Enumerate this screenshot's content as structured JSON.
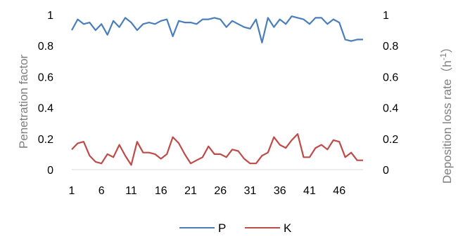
{
  "chart_data": {
    "type": "line",
    "title": "",
    "xlabel": "",
    "ylabel_left": "Penetration factor",
    "ylabel_right_main": "Deposition loss rate（h",
    "ylabel_right_sup": "-1",
    "ylabel_right_close": "）",
    "x_ticks": [
      "1",
      "6",
      "11",
      "16",
      "21",
      "26",
      "31",
      "36",
      "41",
      "46"
    ],
    "y_ticks_left": [
      "0",
      "0.2",
      "0.4",
      "0.6",
      "0.8",
      "1"
    ],
    "y_ticks_right": [
      "0",
      "0.2",
      "0.4",
      "0.6",
      "0.8",
      "1"
    ],
    "ylim": [
      0,
      1
    ],
    "xlim": [
      1,
      50
    ],
    "grid": false,
    "legend_position": "bottom",
    "x": [
      1,
      2,
      3,
      4,
      5,
      6,
      7,
      8,
      9,
      10,
      11,
      12,
      13,
      14,
      15,
      16,
      17,
      18,
      19,
      20,
      21,
      22,
      23,
      24,
      25,
      26,
      27,
      28,
      29,
      30,
      31,
      32,
      33,
      34,
      35,
      36,
      37,
      38,
      39,
      40,
      41,
      42,
      43,
      44,
      45,
      46,
      47,
      48,
      49,
      50
    ],
    "series": [
      {
        "name": "P",
        "axis": "left",
        "color": "#4a7ebb",
        "values": [
          0.9,
          0.97,
          0.94,
          0.95,
          0.9,
          0.94,
          0.87,
          0.96,
          0.92,
          0.98,
          0.95,
          0.9,
          0.94,
          0.95,
          0.94,
          0.96,
          0.97,
          0.86,
          0.96,
          0.95,
          0.95,
          0.94,
          0.97,
          0.97,
          0.98,
          0.97,
          0.92,
          0.96,
          0.94,
          0.92,
          0.91,
          0.97,
          0.82,
          0.98,
          0.92,
          0.97,
          0.94,
          0.99,
          0.98,
          0.97,
          0.94,
          0.98,
          0.98,
          0.94,
          0.97,
          0.95,
          0.84,
          0.83,
          0.84,
          0.84
        ]
      },
      {
        "name": "K",
        "axis": "right",
        "color": "#be4b48",
        "values": [
          0.13,
          0.17,
          0.18,
          0.09,
          0.05,
          0.04,
          0.1,
          0.08,
          0.16,
          0.09,
          0.03,
          0.18,
          0.11,
          0.11,
          0.1,
          0.07,
          0.1,
          0.21,
          0.17,
          0.1,
          0.04,
          0.06,
          0.08,
          0.15,
          0.1,
          0.1,
          0.08,
          0.13,
          0.12,
          0.07,
          0.04,
          0.04,
          0.09,
          0.11,
          0.21,
          0.16,
          0.14,
          0.19,
          0.23,
          0.08,
          0.08,
          0.14,
          0.16,
          0.13,
          0.19,
          0.18,
          0.08,
          0.11,
          0.06,
          0.06
        ]
      }
    ]
  }
}
